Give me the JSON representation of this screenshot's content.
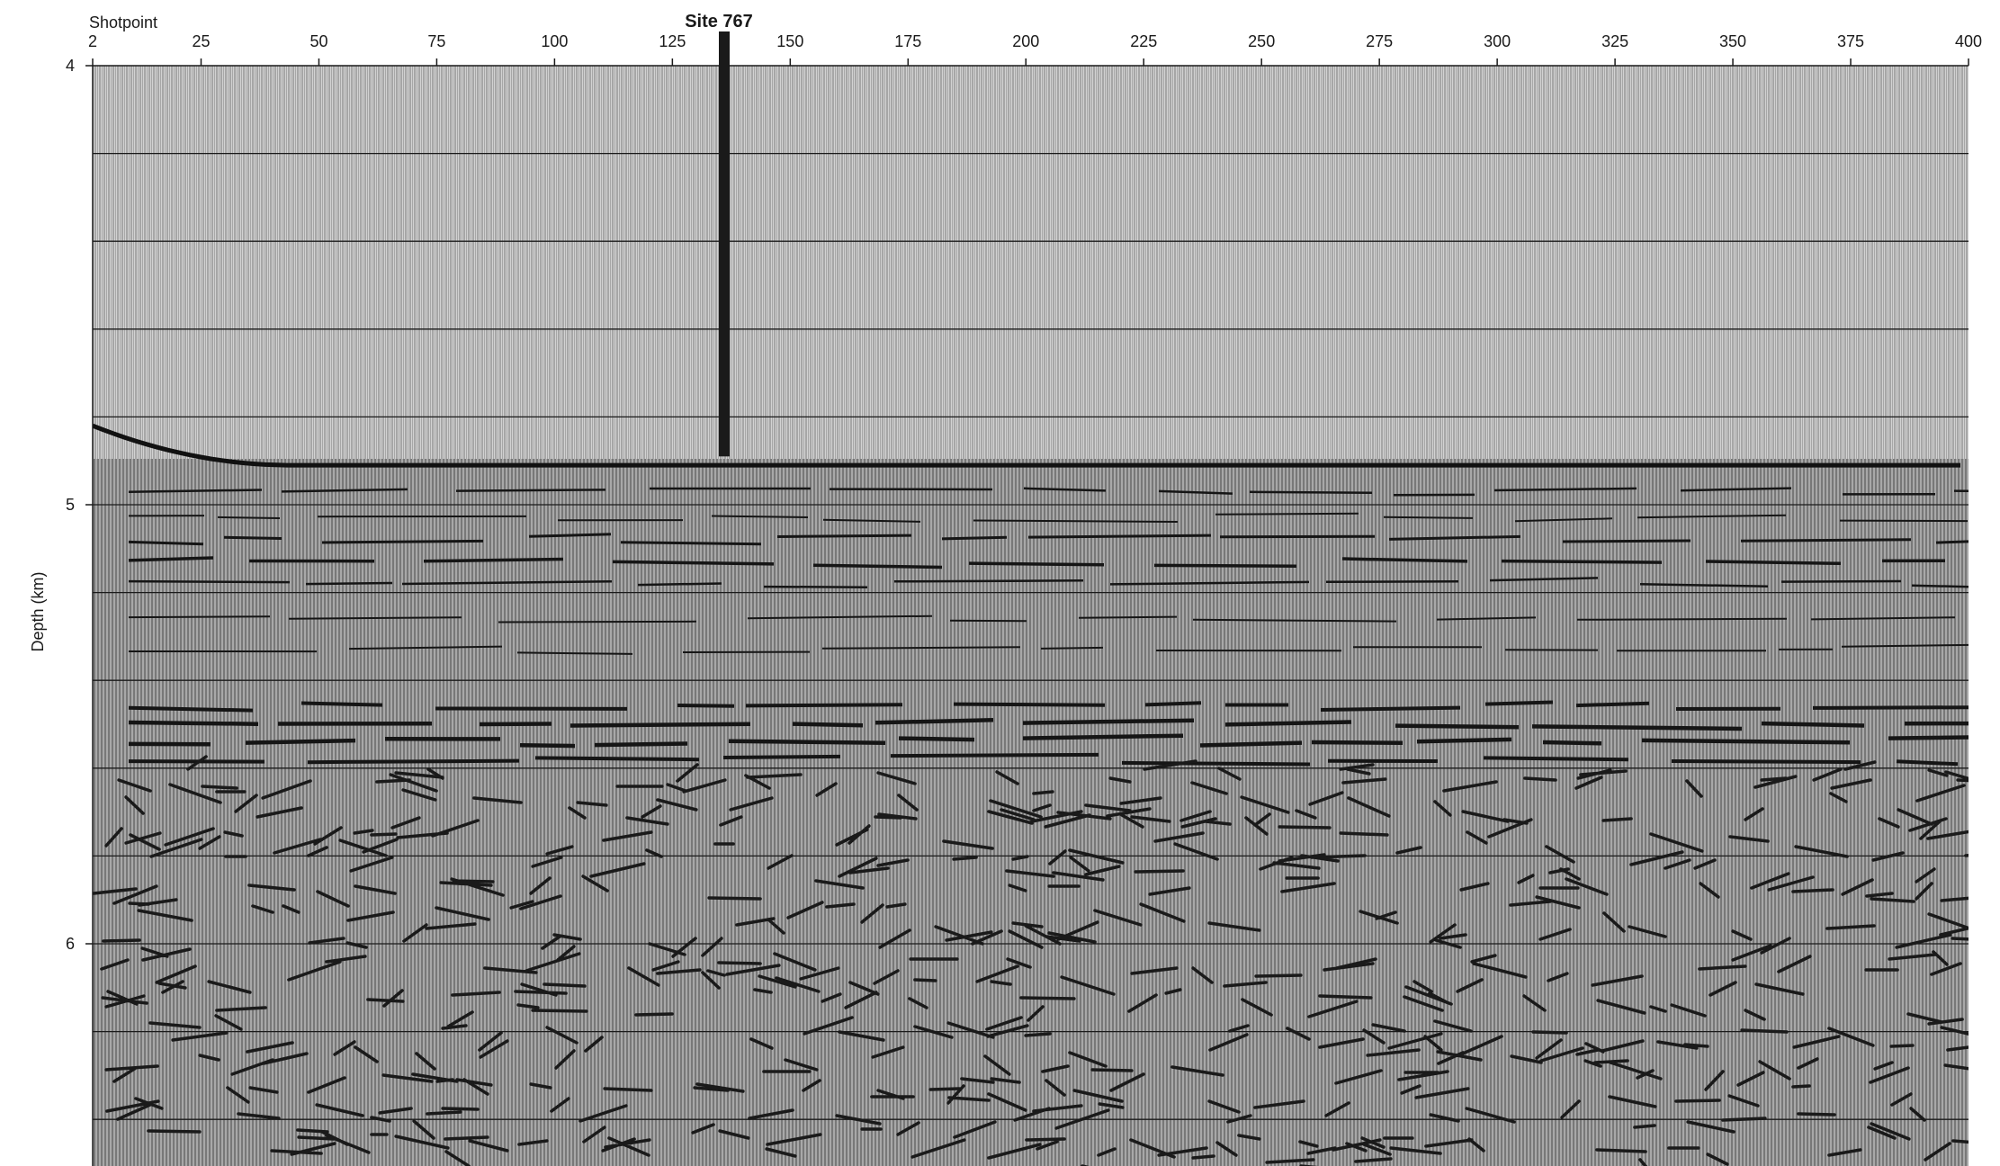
{
  "figure": {
    "x_axis_title": "Shotpoint",
    "y_axis_title": "Depth (km)",
    "site_label": "Site 767"
  },
  "chart_data": {
    "type": "seismic-section",
    "x_axis": {
      "label": "Shotpoint",
      "range": [
        2,
        400
      ],
      "tick_labels": [
        "2",
        "25",
        "50",
        "75",
        "100",
        "125",
        "150",
        "175",
        "200",
        "225",
        "250",
        "275",
        "300",
        "325",
        "350",
        "375",
        "400"
      ],
      "tick_values": [
        2,
        25,
        50,
        75,
        100,
        125,
        150,
        175,
        200,
        225,
        250,
        275,
        300,
        325,
        350,
        375,
        400
      ]
    },
    "y_axis": {
      "label": "Depth (km)",
      "range": [
        4,
        6.5
      ],
      "tick_labels": [
        "4",
        "5",
        "6"
      ],
      "tick_values": [
        4,
        5,
        6
      ],
      "gridline_step": 0.2
    },
    "site": {
      "name": "Site 767",
      "shotpoint": 136,
      "penetration_bottom_km": 4.89
    },
    "seafloor_depth_km": 4.91,
    "colors": {
      "ink": "#1a1a1a",
      "water_column": "#c9c9c9",
      "paper": "#ffffff"
    }
  }
}
